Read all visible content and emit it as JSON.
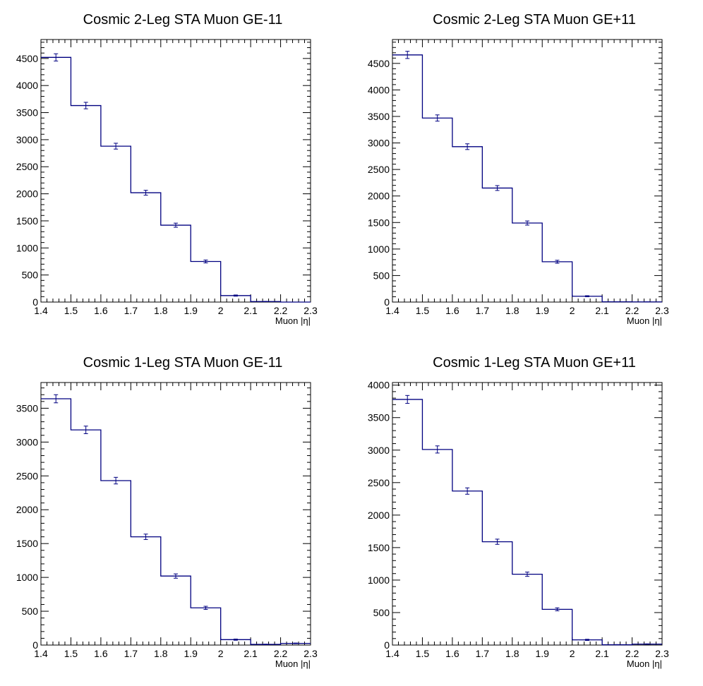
{
  "chart_data": [
    {
      "type": "bar",
      "title": "Cosmic 2-Leg STA Muon GE-11",
      "xlabel": "Muon |η|",
      "ylabel": "",
      "bin_edges": [
        1.4,
        1.5,
        1.6,
        1.7,
        1.8,
        1.9,
        2.0,
        2.1,
        2.2,
        2.3
      ],
      "values": [
        4520,
        3630,
        2880,
        2020,
        1420,
        750,
        120,
        10,
        0
      ],
      "errors": [
        67,
        60,
        54,
        45,
        38,
        27,
        11,
        3,
        0
      ],
      "xlim": [
        1.4,
        2.3
      ],
      "ylim": [
        0,
        4850
      ],
      "xticks": [
        "1.4",
        "1.5",
        "1.6",
        "1.7",
        "1.8",
        "1.9",
        "2",
        "2.1",
        "2.2",
        "2.3"
      ],
      "yticks": [
        "0",
        "500",
        "1000",
        "1500",
        "2000",
        "2500",
        "3000",
        "3500",
        "4000",
        "4500"
      ],
      "grid": false,
      "colors": {
        "line": "#000080",
        "frame": "#000000"
      }
    },
    {
      "type": "bar",
      "title": "Cosmic 2-Leg STA Muon GE+11",
      "xlabel": "Muon |η|",
      "ylabel": "",
      "bin_edges": [
        1.4,
        1.5,
        1.6,
        1.7,
        1.8,
        1.9,
        2.0,
        2.1,
        2.2,
        2.3
      ],
      "values": [
        4660,
        3470,
        2930,
        2150,
        1490,
        760,
        110,
        5,
        3
      ],
      "errors": [
        68,
        59,
        54,
        46,
        39,
        28,
        10,
        2,
        2
      ],
      "xlim": [
        1.4,
        2.3
      ],
      "ylim": [
        0,
        4950
      ],
      "xticks": [
        "1.4",
        "1.5",
        "1.6",
        "1.7",
        "1.8",
        "1.9",
        "2",
        "2.1",
        "2.2",
        "2.3"
      ],
      "yticks": [
        "0",
        "500",
        "1000",
        "1500",
        "2000",
        "2500",
        "3000",
        "3500",
        "4000",
        "4500"
      ],
      "grid": false,
      "colors": {
        "line": "#000080",
        "frame": "#000000"
      }
    },
    {
      "type": "bar",
      "title": "Cosmic 1-Leg STA Muon GE-11",
      "xlabel": "Muon |η|",
      "ylabel": "",
      "bin_edges": [
        1.4,
        1.5,
        1.6,
        1.7,
        1.8,
        1.9,
        2.0,
        2.1,
        2.2,
        2.3
      ],
      "values": [
        3640,
        3180,
        2430,
        1600,
        1020,
        550,
        80,
        10,
        25
      ],
      "errors": [
        60,
        56,
        49,
        40,
        32,
        23,
        9,
        3,
        5
      ],
      "xlim": [
        1.4,
        2.3
      ],
      "ylim": [
        0,
        3880
      ],
      "xticks": [
        "1.4",
        "1.5",
        "1.6",
        "1.7",
        "1.8",
        "1.9",
        "2",
        "2.1",
        "2.2",
        "2.3"
      ],
      "yticks": [
        "0",
        "500",
        "1000",
        "1500",
        "2000",
        "2500",
        "3000",
        "3500"
      ],
      "grid": false,
      "colors": {
        "line": "#000080",
        "frame": "#000000"
      }
    },
    {
      "type": "bar",
      "title": "Cosmic 1-Leg STA Muon GE+11",
      "xlabel": "Muon |η|",
      "ylabel": "",
      "bin_edges": [
        1.4,
        1.5,
        1.6,
        1.7,
        1.8,
        1.9,
        2.0,
        2.1,
        2.2,
        2.3
      ],
      "values": [
        3780,
        3010,
        2370,
        1590,
        1090,
        550,
        80,
        5,
        15
      ],
      "errors": [
        61,
        55,
        49,
        40,
        33,
        23,
        9,
        2,
        4
      ],
      "xlim": [
        1.4,
        2.3
      ],
      "ylim": [
        0,
        4040
      ],
      "xticks": [
        "1.4",
        "1.5",
        "1.6",
        "1.7",
        "1.8",
        "1.9",
        "2",
        "2.1",
        "2.2",
        "2.3"
      ],
      "yticks": [
        "0",
        "500",
        "1000",
        "1500",
        "2000",
        "2500",
        "3000",
        "3500",
        "4000"
      ],
      "grid": false,
      "colors": {
        "line": "#000080",
        "frame": "#000000"
      }
    }
  ]
}
